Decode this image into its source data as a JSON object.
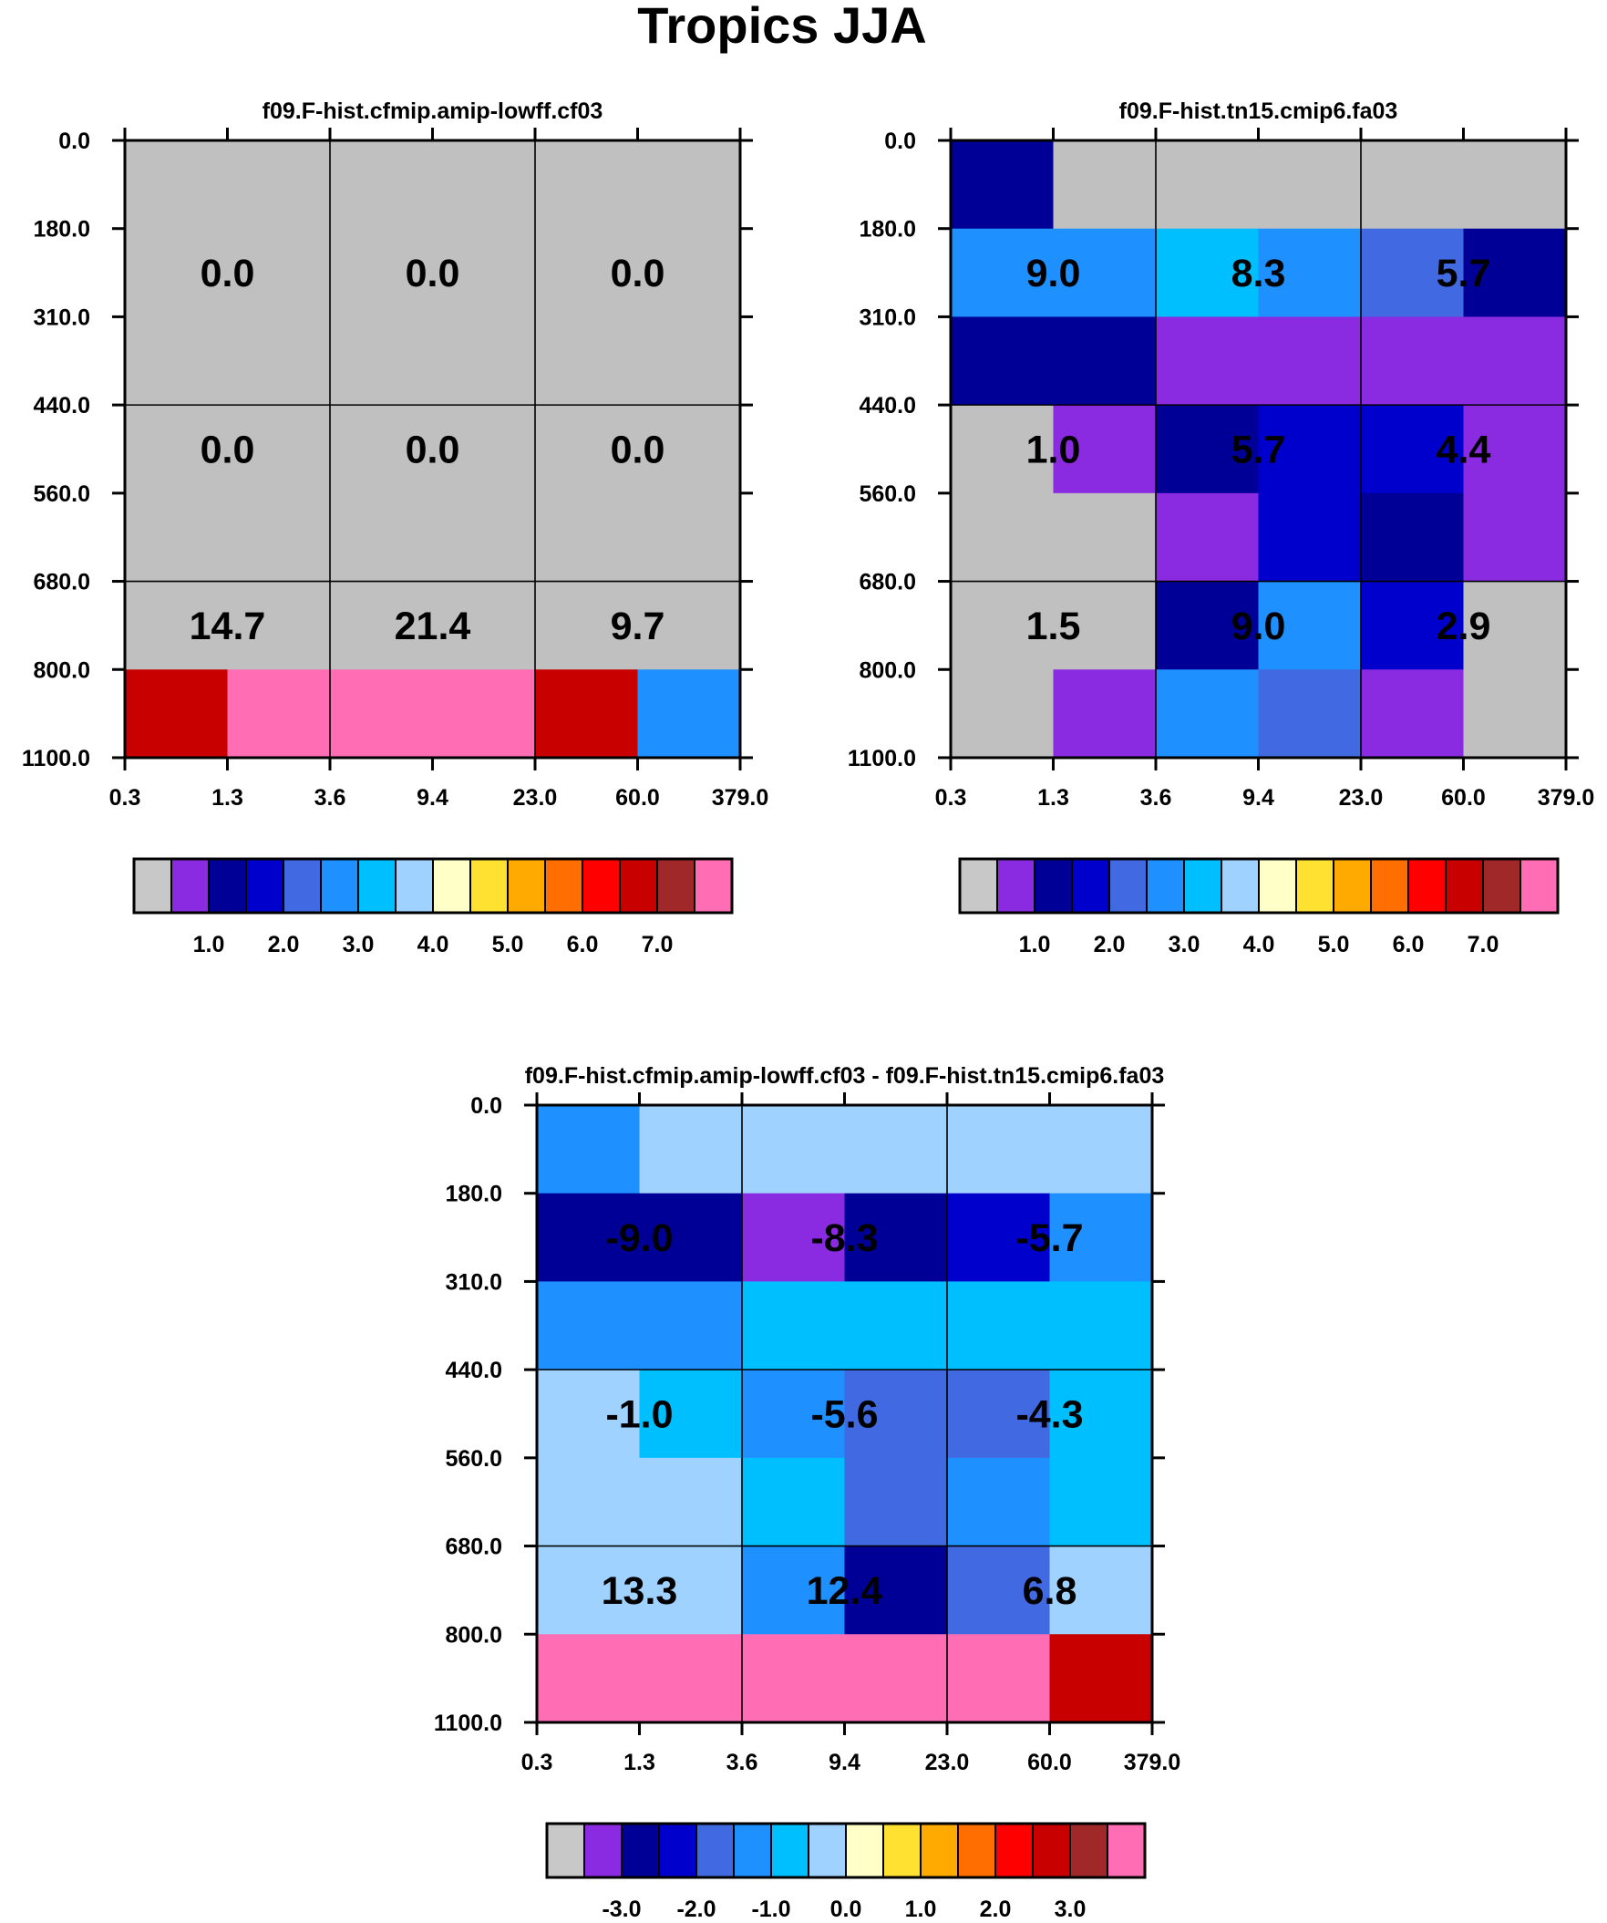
{
  "figure_title": "Tropics JJA",
  "chart_data": [
    {
      "type": "heatmap",
      "title": "f09.F-hist.cfmip.amip-lowff.cf03",
      "x_tick_labels": [
        "0.3",
        "1.3",
        "3.6",
        "9.4",
        "23.0",
        "60.0",
        "379.0"
      ],
      "y_tick_labels": [
        "0.0",
        "180.0",
        "310.0",
        "440.0",
        "560.0",
        "680.0",
        "800.0",
        "1100.0"
      ],
      "cells": [
        [
          "#c0c0c0",
          "#c0c0c0",
          "#c0c0c0",
          "#c0c0c0",
          "#c0c0c0",
          "#c0c0c0"
        ],
        [
          "#c0c0c0",
          "#c0c0c0",
          "#c0c0c0",
          "#c0c0c0",
          "#c0c0c0",
          "#c0c0c0"
        ],
        [
          "#c0c0c0",
          "#c0c0c0",
          "#c0c0c0",
          "#c0c0c0",
          "#c0c0c0",
          "#c0c0c0"
        ],
        [
          "#c0c0c0",
          "#c0c0c0",
          "#c0c0c0",
          "#c0c0c0",
          "#c0c0c0",
          "#c0c0c0"
        ],
        [
          "#c0c0c0",
          "#c0c0c0",
          "#c0c0c0",
          "#c0c0c0",
          "#c0c0c0",
          "#c0c0c0"
        ],
        [
          "#c0c0c0",
          "#c0c0c0",
          "#c0c0c0",
          "#c0c0c0",
          "#c0c0c0",
          "#c0c0c0"
        ],
        [
          "#c80000",
          "#ff6eb4",
          "#ff6eb4",
          "#ff6eb4",
          "#c80000",
          "#1e90ff"
        ]
      ],
      "values": [
        [
          "0.0",
          "0.0",
          "0.0"
        ],
        [
          "0.0",
          "0.0",
          "0.0"
        ],
        [
          "14.7",
          "21.4",
          "9.7"
        ]
      ],
      "colorbar": {
        "colors": [
          "#c8c8c8",
          "#8a2be2",
          "#000096",
          "#0000cd",
          "#4169e1",
          "#1e90ff",
          "#00bfff",
          "#a0d2ff",
          "#ffffc8",
          "#ffe132",
          "#ffaa00",
          "#ff6e00",
          "#ff0000",
          "#c80000",
          "#a02828",
          "#ff6eb4"
        ],
        "labels": [
          "1.0",
          "2.0",
          "3.0",
          "4.0",
          "5.0",
          "6.0",
          "7.0"
        ]
      }
    },
    {
      "type": "heatmap",
      "title": "f09.F-hist.tn15.cmip6.fa03",
      "x_tick_labels": [
        "0.3",
        "1.3",
        "3.6",
        "9.4",
        "23.0",
        "60.0",
        "379.0"
      ],
      "y_tick_labels": [
        "0.0",
        "180.0",
        "310.0",
        "440.0",
        "560.0",
        "680.0",
        "800.0",
        "1100.0"
      ],
      "cells": [
        [
          "#000096",
          "#c0c0c0",
          "#c0c0c0",
          "#c0c0c0",
          "#c0c0c0",
          "#c0c0c0"
        ],
        [
          "#1e90ff",
          "#1e90ff",
          "#00bfff",
          "#1e90ff",
          "#4169e1",
          "#000096"
        ],
        [
          "#000096",
          "#000096",
          "#8a2be2",
          "#8a2be2",
          "#8a2be2",
          "#8a2be2"
        ],
        [
          "#c0c0c0",
          "#8a2be2",
          "#000096",
          "#0000cd",
          "#0000cd",
          "#8a2be2"
        ],
        [
          "#c0c0c0",
          "#c0c0c0",
          "#8a2be2",
          "#0000cd",
          "#000096",
          "#8a2be2"
        ],
        [
          "#c0c0c0",
          "#c0c0c0",
          "#000096",
          "#1e90ff",
          "#0000cd",
          "#c0c0c0"
        ],
        [
          "#c0c0c0",
          "#8a2be2",
          "#1e90ff",
          "#4169e1",
          "#8a2be2",
          "#c0c0c0"
        ]
      ],
      "values": [
        [
          "9.0",
          "8.3",
          "5.7"
        ],
        [
          "1.0",
          "5.7",
          "4.4"
        ],
        [
          "1.5",
          "9.0",
          "2.9"
        ]
      ],
      "colorbar": {
        "colors": [
          "#c8c8c8",
          "#8a2be2",
          "#000096",
          "#0000cd",
          "#4169e1",
          "#1e90ff",
          "#00bfff",
          "#a0d2ff",
          "#ffffc8",
          "#ffe132",
          "#ffaa00",
          "#ff6e00",
          "#ff0000",
          "#c80000",
          "#a02828",
          "#ff6eb4"
        ],
        "labels": [
          "1.0",
          "2.0",
          "3.0",
          "4.0",
          "5.0",
          "6.0",
          "7.0"
        ]
      }
    },
    {
      "type": "heatmap",
      "title": "f09.F-hist.cfmip.amip-lowff.cf03 - f09.F-hist.tn15.cmip6.fa03",
      "x_tick_labels": [
        "0.3",
        "1.3",
        "3.6",
        "9.4",
        "23.0",
        "60.0",
        "379.0"
      ],
      "y_tick_labels": [
        "0.0",
        "180.0",
        "310.0",
        "440.0",
        "560.0",
        "680.0",
        "800.0",
        "1100.0"
      ],
      "cells": [
        [
          "#1e90ff",
          "#a0d2ff",
          "#a0d2ff",
          "#a0d2ff",
          "#a0d2ff",
          "#a0d2ff"
        ],
        [
          "#000096",
          "#000096",
          "#8a2be2",
          "#000096",
          "#0000cd",
          "#1e90ff"
        ],
        [
          "#1e90ff",
          "#1e90ff",
          "#00bfff",
          "#00bfff",
          "#00bfff",
          "#00bfff"
        ],
        [
          "#a0d2ff",
          "#00bfff",
          "#1e90ff",
          "#4169e1",
          "#4169e1",
          "#00bfff"
        ],
        [
          "#a0d2ff",
          "#a0d2ff",
          "#00bfff",
          "#4169e1",
          "#1e90ff",
          "#00bfff"
        ],
        [
          "#a0d2ff",
          "#a0d2ff",
          "#1e90ff",
          "#000096",
          "#4169e1",
          "#a0d2ff"
        ],
        [
          "#ff6eb4",
          "#ff6eb4",
          "#ff6eb4",
          "#ff6eb4",
          "#ff6eb4",
          "#c80000"
        ]
      ],
      "values": [
        [
          "-9.0",
          "-8.3",
          "-5.7"
        ],
        [
          "-1.0",
          "-5.6",
          "-4.3"
        ],
        [
          "13.3",
          "12.4",
          "6.8"
        ]
      ],
      "colorbar": {
        "colors": [
          "#c8c8c8",
          "#8a2be2",
          "#000096",
          "#0000cd",
          "#4169e1",
          "#1e90ff",
          "#00bfff",
          "#a0d2ff",
          "#ffffc8",
          "#ffe132",
          "#ffaa00",
          "#ff6e00",
          "#ff0000",
          "#c80000",
          "#a02828",
          "#ff6eb4"
        ],
        "labels": [
          "-3.0",
          "-2.0",
          "-1.0",
          "0.0",
          "1.0",
          "2.0",
          "3.0"
        ]
      }
    }
  ]
}
